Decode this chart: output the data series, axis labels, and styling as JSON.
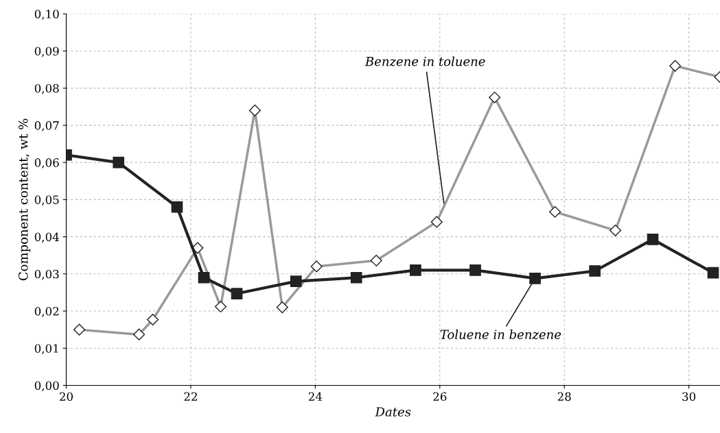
{
  "chart_data": {
    "type": "line",
    "xlabel": "Dates",
    "ylabel": "Component content, wt %",
    "xlim": [
      20,
      30.5
    ],
    "xticks": [
      20,
      22,
      24,
      26,
      28,
      30
    ],
    "ylim": [
      0,
      0.1
    ],
    "yticks": [
      {
        "value": 0,
        "label": "0,00"
      },
      {
        "value": 0.01,
        "label": "0,01"
      },
      {
        "value": 0.02,
        "label": "0,02"
      },
      {
        "value": 0.03,
        "label": "0,03"
      },
      {
        "value": 0.04,
        "label": "0,04"
      },
      {
        "value": 0.05,
        "label": "0,05"
      },
      {
        "value": 0.06,
        "label": "0,06"
      },
      {
        "value": 0.07,
        "label": "0,07"
      },
      {
        "value": 0.08,
        "label": "0,08"
      },
      {
        "value": 0.09,
        "label": "0,09"
      },
      {
        "value": 0.1,
        "label": "0,10"
      }
    ],
    "grid": true,
    "series": [
      {
        "color": "#999999",
        "marker": "diamond",
        "x": [
          20.21,
          21.17,
          21.39,
          22.11,
          22.48,
          23.03,
          23.47,
          24.02,
          24.98,
          25.95,
          26.88,
          27.85,
          28.82,
          29.78,
          30.5
        ],
        "values": [
          0.015,
          0.0137,
          0.0177,
          0.037,
          0.0212,
          0.074,
          0.021,
          0.032,
          0.0336,
          0.044,
          0.0775,
          0.0467,
          0.0417,
          0.086,
          0.083
        ]
      },
      {
        "color": "#222222",
        "marker": "square",
        "x": [
          20,
          20.84,
          21.78,
          22.21,
          22.74,
          23.69,
          24.66,
          25.61,
          26.57,
          27.53,
          28.49,
          29.42,
          30.39
        ],
        "values": [
          0.062,
          0.06,
          0.048,
          0.029,
          0.0247,
          0.028,
          0.029,
          0.031,
          0.031,
          0.0288,
          0.0308,
          0.0393,
          0.0303
        ]
      }
    ],
    "annotations": [
      {
        "text": "Benzene in toluene",
        "x": 26.07,
        "y": 0.0485
      },
      {
        "text": "Toluene in benzene",
        "x": 27.53,
        "y": 0.0288
      }
    ]
  }
}
